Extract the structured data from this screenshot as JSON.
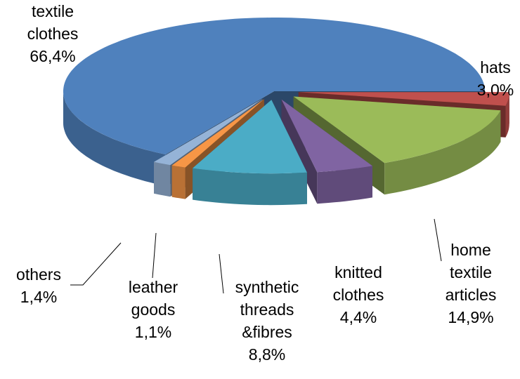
{
  "chart_data": {
    "type": "pie",
    "categories": [
      "hats",
      "home textile articles",
      "knitted clothes",
      "synthetic threads &fibres",
      "leather goods",
      "others",
      "textile clothes"
    ],
    "values": [
      3.0,
      14.9,
      4.4,
      8.8,
      1.1,
      1.4,
      66.4
    ],
    "value_labels": [
      "3,0%",
      "14,9%",
      "4,4%",
      "8,8%",
      "1,1%",
      "1,4%",
      "66,4%"
    ],
    "colors": [
      "#c0504d",
      "#9bbb59",
      "#8064a2",
      "#4bacc6",
      "#f79646",
      "#95b3d7",
      "#4f81bd"
    ]
  }
}
